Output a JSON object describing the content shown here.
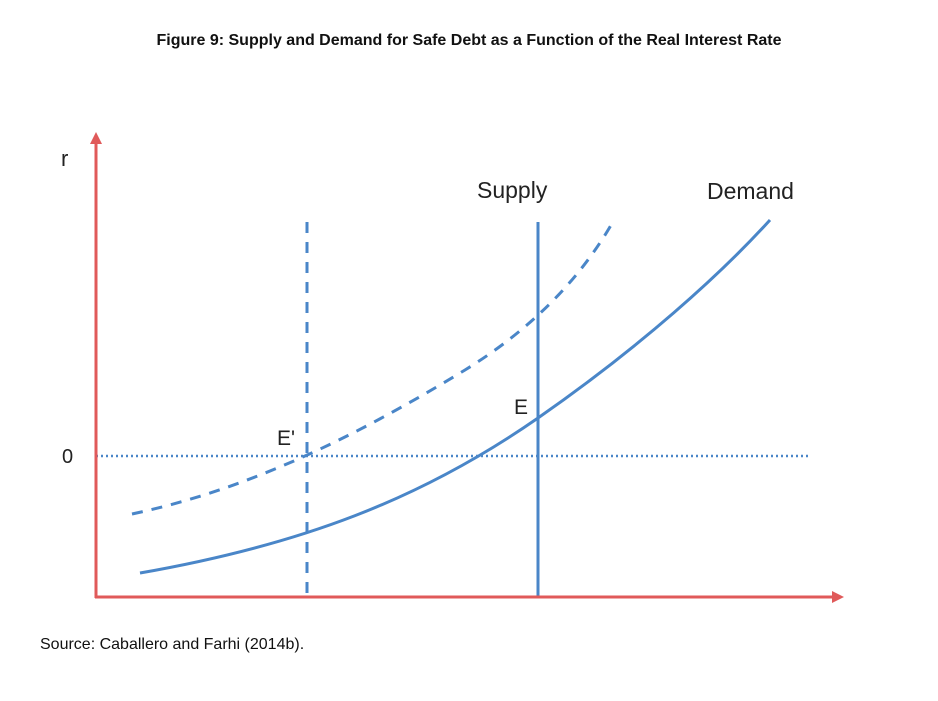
{
  "title": "Figure 9: Supply and Demand for Safe Debt as a Function of the Real Interest Rate",
  "source": "Source: Caballero and Farhi (2014b).",
  "diagram": {
    "axis_y_label": "r",
    "zero_label": "0",
    "supply_label": "Supply",
    "demand_label": "Demand",
    "equilibrium_label": "E",
    "new_equilibrium_label": "E'",
    "colors": {
      "axis": "#e05a5a",
      "curve": "#4a86c8"
    }
  }
}
